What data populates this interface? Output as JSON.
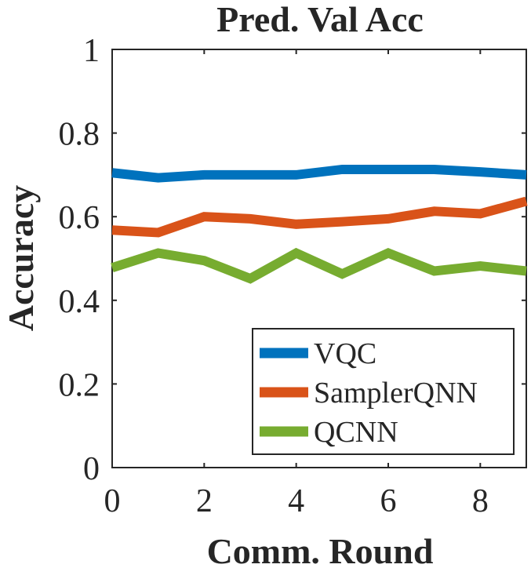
{
  "chart_data": {
    "type": "line",
    "title": "Pred. Val Acc",
    "xlabel": "Comm. Round",
    "ylabel": "Accuracy",
    "xlim": [
      0,
      9
    ],
    "ylim": [
      0,
      1
    ],
    "xticks": [
      0,
      2,
      4,
      6,
      8
    ],
    "xtick_labels": [
      "0",
      "2",
      "4",
      "6",
      "8"
    ],
    "yticks": [
      0,
      0.2,
      0.4,
      0.6,
      0.8,
      1
    ],
    "ytick_labels": [
      "0",
      "0.2",
      "0.4",
      "0.6",
      "0.8",
      "1"
    ],
    "grid": false,
    "legend_position": "bottom-right",
    "x": [
      0,
      1,
      2,
      3,
      4,
      5,
      6,
      7,
      8,
      9
    ],
    "series": [
      {
        "name": "VQC",
        "color": "#0072BD",
        "values": [
          0.705,
          0.693,
          0.7,
          0.7,
          0.7,
          0.713,
          0.713,
          0.713,
          0.707,
          0.7
        ]
      },
      {
        "name": "SamplerQNN",
        "color": "#D95319",
        "values": [
          0.568,
          0.562,
          0.6,
          0.595,
          0.582,
          0.588,
          0.595,
          0.613,
          0.607,
          0.637
        ]
      },
      {
        "name": "QCNN",
        "color": "#77AC30",
        "values": [
          0.478,
          0.513,
          0.495,
          0.452,
          0.513,
          0.463,
          0.513,
          0.47,
          0.482,
          0.47
        ]
      }
    ]
  }
}
